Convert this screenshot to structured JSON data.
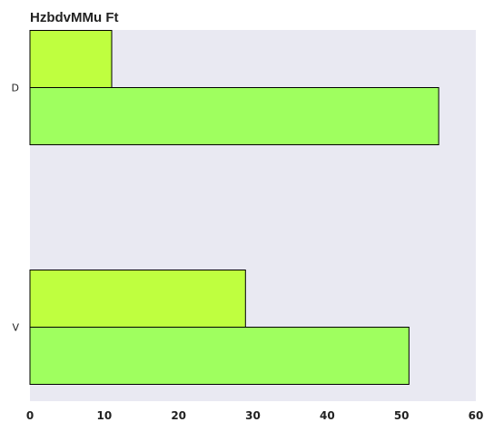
{
  "chart_data": {
    "type": "bar",
    "orientation": "horizontal",
    "title": "HzbdvMMu Ft",
    "xlabel": "",
    "ylabel": "",
    "categories": [
      "D",
      "V"
    ],
    "series": [
      {
        "values": [
          11,
          29
        ],
        "color": "#bfff3f"
      },
      {
        "values": [
          55,
          51
        ],
        "color": "#9fff5f"
      }
    ],
    "xlim": [
      0,
      60
    ],
    "xticks": [
      0,
      10,
      20,
      30,
      40,
      50,
      60
    ],
    "grid": false,
    "legend": "none",
    "background": "#e9e9f2"
  }
}
